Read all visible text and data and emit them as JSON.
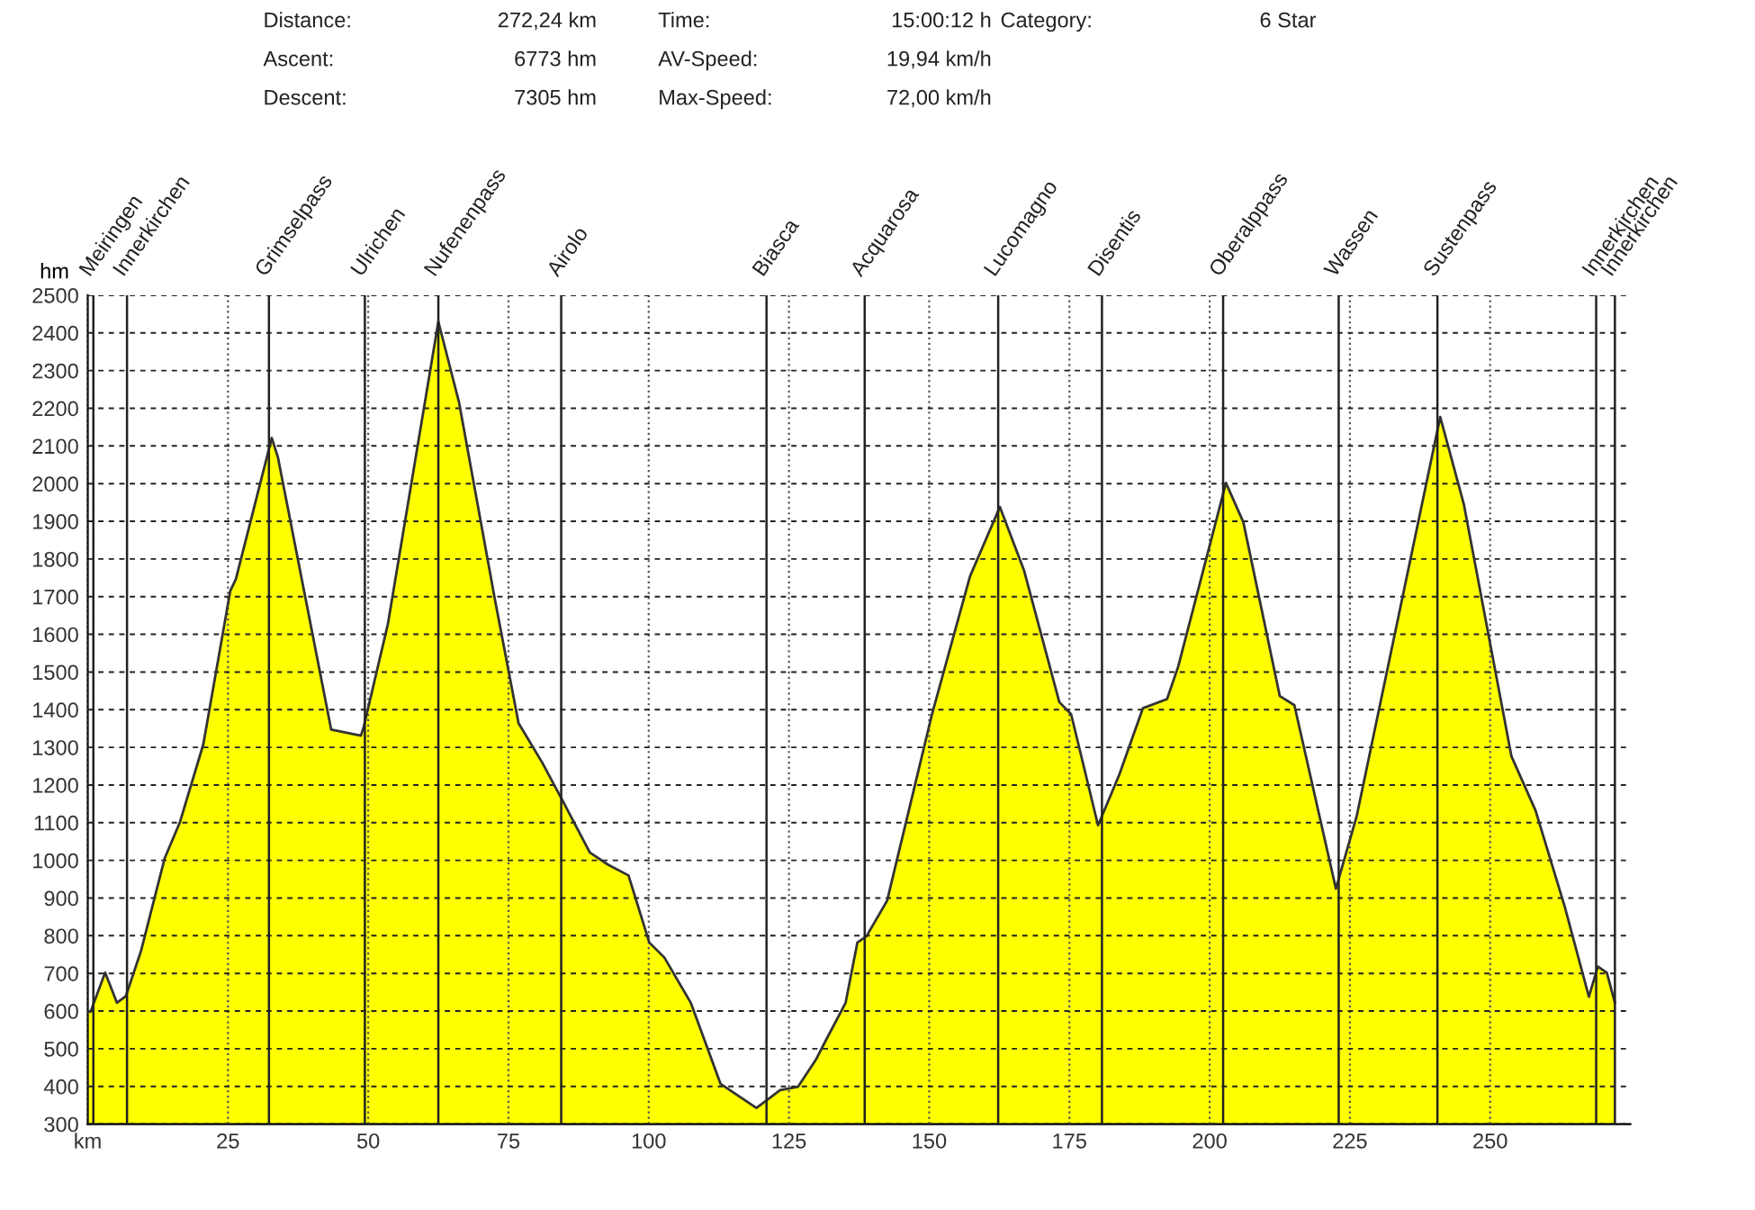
{
  "chart_data": {
    "type": "area",
    "ylabel": "hm",
    "annotations": [
      "Distance:",
      "272,24 km",
      "Time:",
      "15:00:12 h",
      "Category:",
      "6 Star",
      "Ascent:",
      "6773 hm",
      "AV-Speed:",
      "19,94 km/h",
      "Descent:",
      "7305 hm",
      "Max-Speed:",
      "72,00 km/h"
    ],
    "series": [
      {
        "color": "#ffff00",
        "x": [
          0,
          0.5,
          3.1,
          5.2,
          6.8,
          9.5,
          13.7,
          16.4,
          20.6,
          25.4,
          26.4,
          32.8,
          33.9,
          43.4,
          48.7,
          49.2,
          53.5,
          62.5,
          66.2,
          72.6,
          76.8,
          81,
          84.7,
          89.5,
          92.7,
          96.4,
          100.1,
          102.8,
          107.5,
          112.8,
          119.2,
          121.3,
          123.4,
          126.6,
          129.8,
          131.5,
          135.1,
          137.2,
          138.8,
          142.5,
          150.5,
          157.3,
          162.6,
          166.9,
          173.2,
          175.3,
          180.1,
          183.9,
          188.1,
          192.4,
          194.4,
          202.9,
          206,
          212.5,
          215.1,
          222.5,
          226.2,
          241.1,
          245.3,
          253.8,
          258.1,
          263.3,
          267.6,
          269.2,
          270.8,
          272.24
        ],
        "values": [
          600,
          598,
          702,
          622,
          640,
          760,
          1005,
          1100,
          1308,
          1715,
          1746,
          2121,
          2070,
          1347,
          1331,
          1355,
          1627,
          2430,
          2215,
          1691,
          1364,
          1260,
          1157,
          1021,
          989,
          960,
          782,
          742,
          622,
          407,
          343,
          366,
          390,
          399,
          471,
          520,
          622,
          782,
          798,
          893,
          1388,
          1755,
          1938,
          1770,
          1420,
          1388,
          1093,
          1228,
          1404,
          1428,
          1515,
          2002,
          1898,
          1436,
          1412,
          925,
          1117,
          2177,
          1946,
          1276,
          1132,
          877,
          638,
          718,
          702,
          622
        ]
      }
    ],
    "ref_lines": [
      {
        "axis": "x",
        "value": 1,
        "label": "Meiringen"
      },
      {
        "axis": "x",
        "value": 7,
        "label": "Innerkirchen"
      },
      {
        "axis": "x",
        "value": 32.3,
        "label": "Grimselpass"
      },
      {
        "axis": "x",
        "value": 49.4,
        "label": "Ulrichen"
      },
      {
        "axis": "x",
        "value": 62.5,
        "label": "Nufenenpass"
      },
      {
        "axis": "x",
        "value": 84.4,
        "label": "Airolo"
      },
      {
        "axis": "x",
        "value": 121,
        "label": "Biasca"
      },
      {
        "axis": "x",
        "value": 138.5,
        "label": "Acquarosa"
      },
      {
        "axis": "x",
        "value": 162.3,
        "label": "Lucomagno"
      },
      {
        "axis": "x",
        "value": 180.8,
        "label": "Disentis"
      },
      {
        "axis": "x",
        "value": 202.4,
        "label": "Oberalppass"
      },
      {
        "axis": "x",
        "value": 223,
        "label": "Wassen"
      },
      {
        "axis": "x",
        "value": 240.6,
        "label": "Sustenpass"
      },
      {
        "axis": "x",
        "value": 268.9,
        "label": "Innerkirchen"
      },
      {
        "axis": "x",
        "value": 272.24,
        "label": "Innerkirchen"
      }
    ],
    "xlim": [
      0,
      275
    ],
    "xticks": [
      {
        "value": 0,
        "label": "km"
      },
      25,
      50,
      75,
      100,
      125,
      150,
      175,
      200,
      225,
      250
    ],
    "ylim": [
      300,
      2500
    ],
    "yticks": [
      300,
      400,
      500,
      600,
      700,
      800,
      900,
      1000,
      1100,
      1200,
      1300,
      1400,
      1500,
      1600,
      1700,
      1800,
      1900,
      2000,
      2100,
      2200,
      2300,
      2400,
      2500
    ],
    "grid": true,
    "line_style": "dashed"
  }
}
